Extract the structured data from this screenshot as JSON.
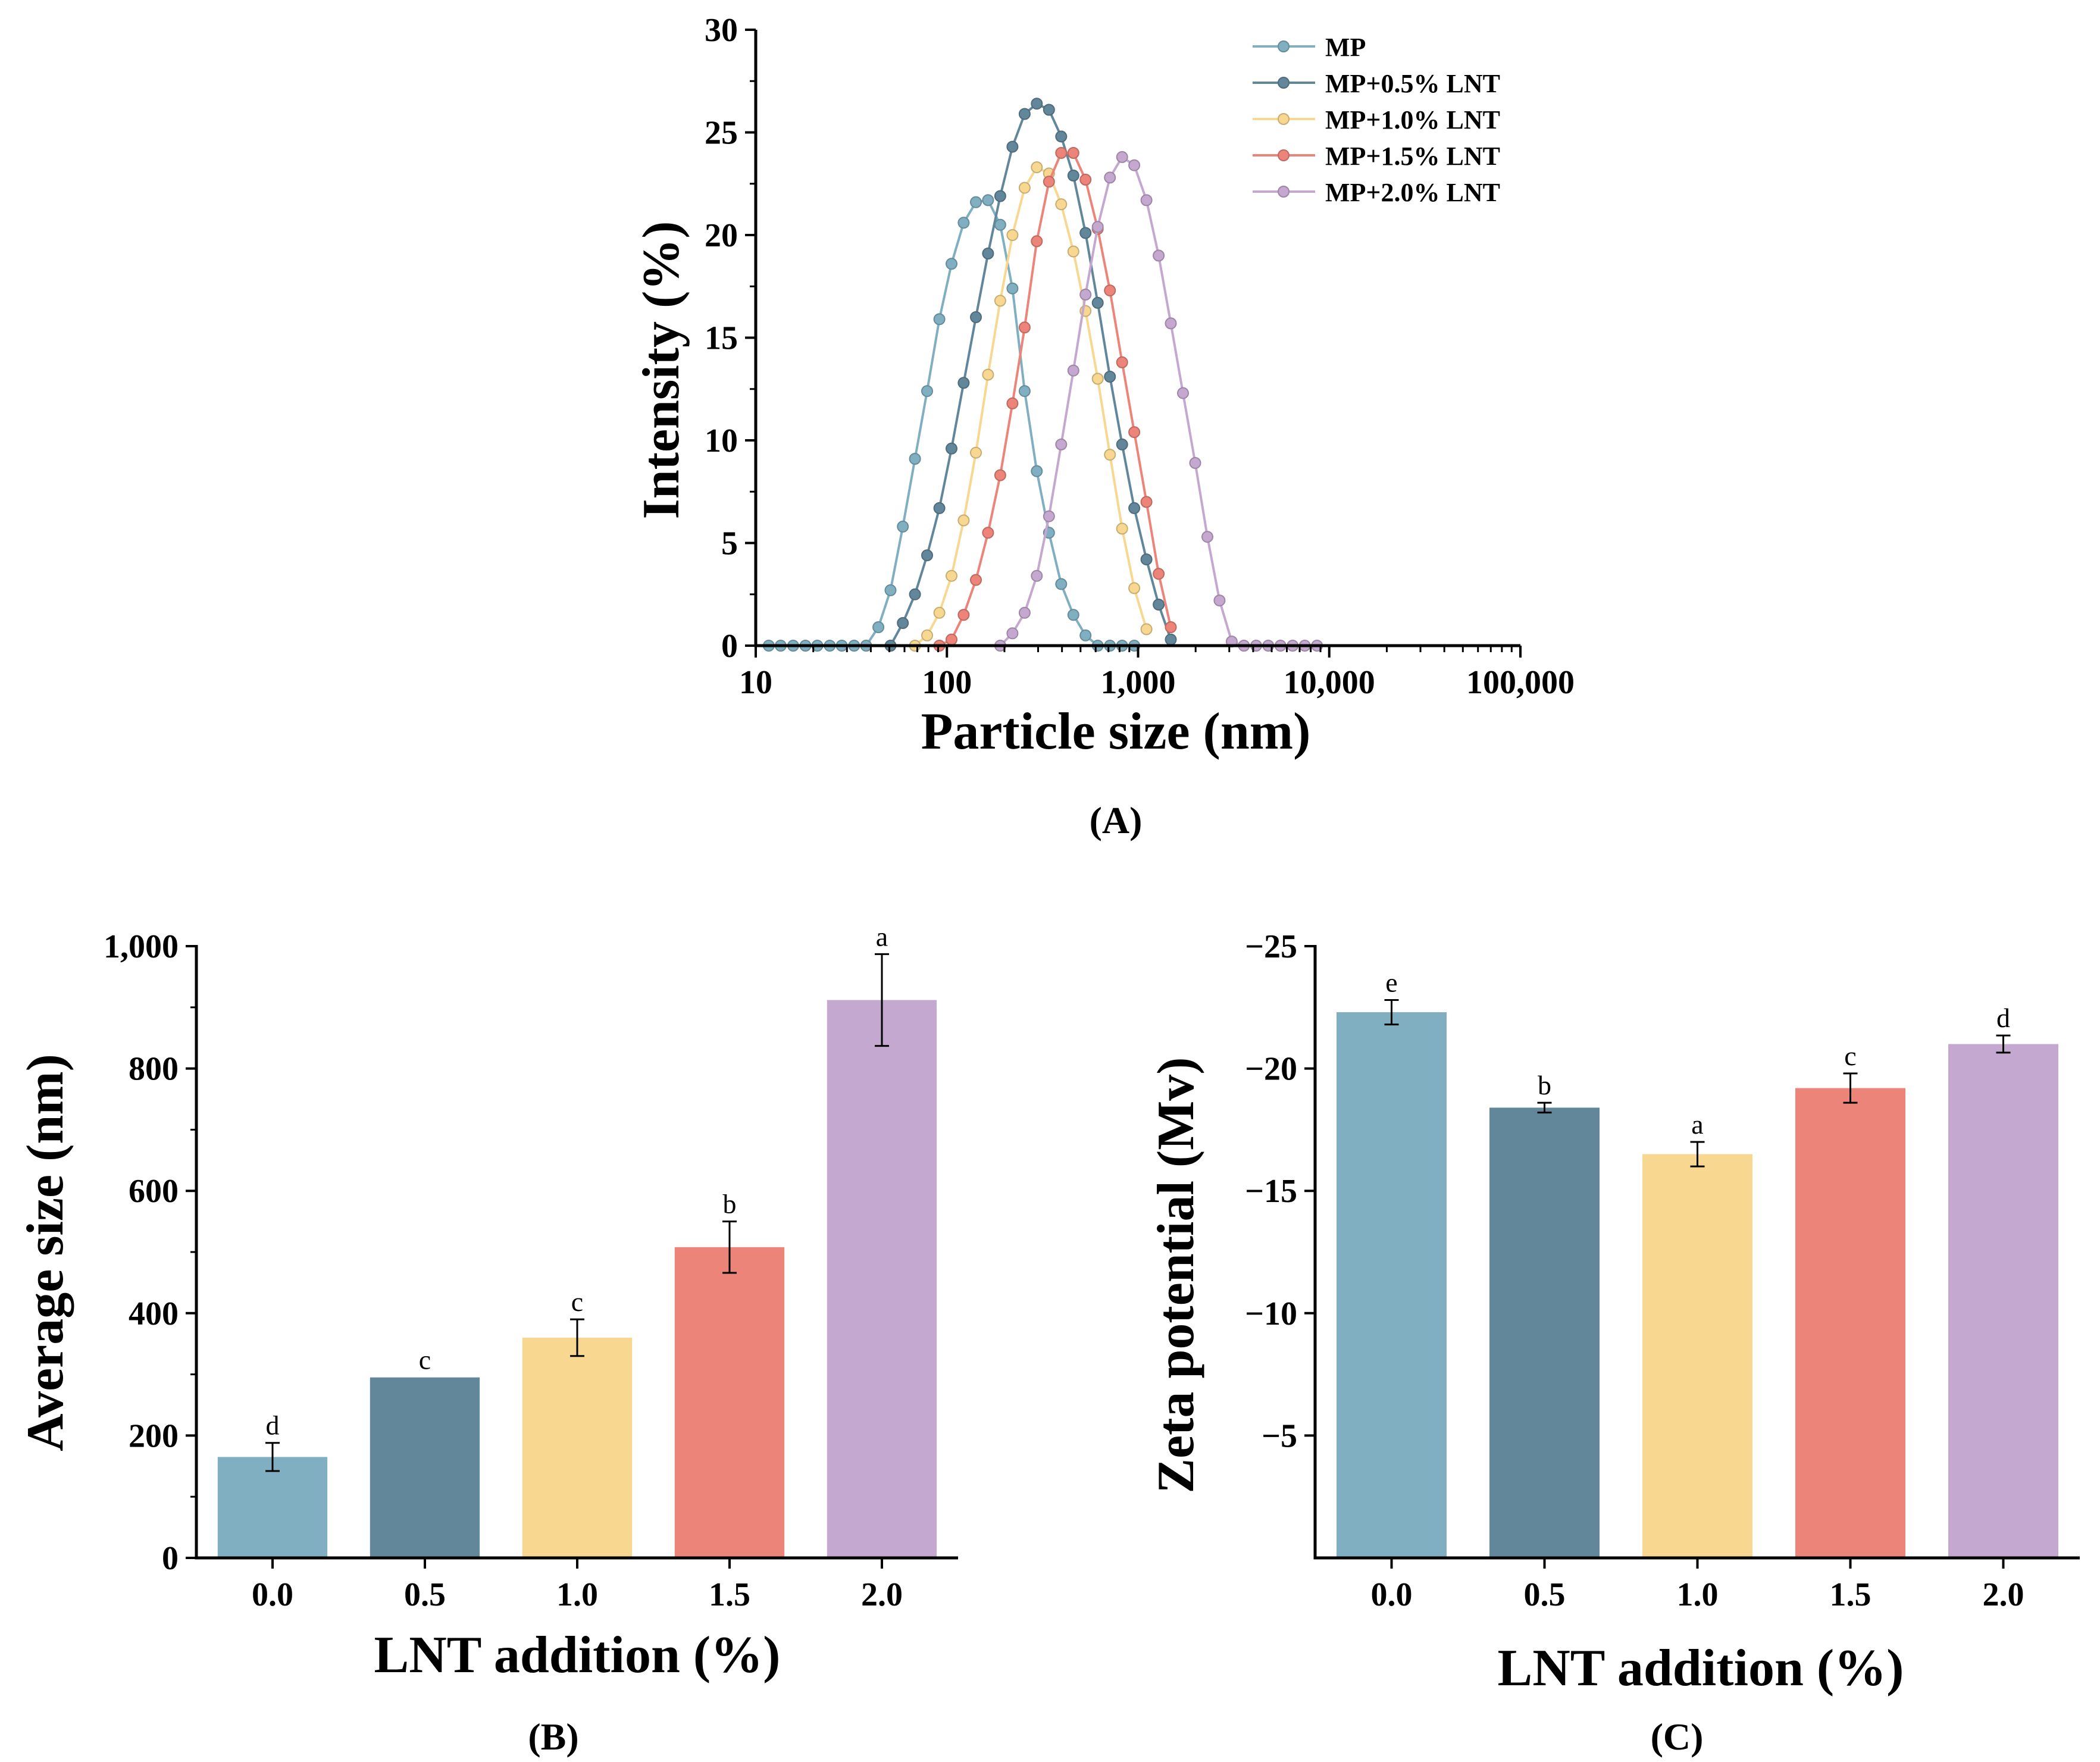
{
  "figure": {
    "panel_labels": [
      "(A)",
      "(B)",
      "(C)"
    ]
  },
  "chart_data": [
    {
      "panel": "(A)",
      "type": "line",
      "title": "",
      "xlabel": "Particle size (nm)",
      "ylabel": "Intensity (%)",
      "xscale": "log",
      "xlim": [
        10,
        100000
      ],
      "ylim": [
        0,
        30
      ],
      "xticks": [
        10,
        100,
        1000,
        10000,
        100000
      ],
      "xtick_labels": [
        "10",
        "100",
        "1,000",
        "10,000",
        "100,000"
      ],
      "yticks": [
        0,
        5,
        10,
        15,
        20,
        25,
        30
      ],
      "ytick_labels": [
        "0",
        "5",
        "10",
        "15",
        "20",
        "25",
        "30"
      ],
      "legend_position": "top-right",
      "series": [
        {
          "name": "MP",
          "color": "#7fafc0",
          "x": [
            11.7,
            13.5,
            15.7,
            18.2,
            21.0,
            24.4,
            28.2,
            32.7,
            37.8,
            43.8,
            50.7,
            58.8,
            68.1,
            78.8,
            91.3,
            105.7,
            122.4,
            141.8,
            164.2,
            190.1,
            220.2,
            255.0,
            295.3,
            342.0,
            396.1,
            458.7,
            531.2,
            615.1,
            712.4,
            825.0,
            955.4
          ],
          "y": [
            0,
            0,
            0,
            0,
            0,
            0,
            0,
            0,
            0,
            0.9,
            2.7,
            5.8,
            9.1,
            12.4,
            15.9,
            18.6,
            20.6,
            21.6,
            21.7,
            20.5,
            17.4,
            12.4,
            8.5,
            5.5,
            3.0,
            1.5,
            0.5,
            0,
            0,
            0,
            0
          ]
        },
        {
          "name": "MP+0.5% LNT",
          "color": "#62879a",
          "x": [
            50.7,
            58.8,
            68.1,
            78.8,
            91.3,
            105.7,
            122.4,
            141.8,
            164.2,
            190.1,
            220.2,
            255.0,
            295.3,
            342.0,
            396.1,
            458.7,
            531.2,
            615.1,
            712.4,
            825.0,
            955.4,
            1106.4,
            1281.3,
            1483.7
          ],
          "y": [
            0,
            1.1,
            2.5,
            4.4,
            6.7,
            9.6,
            12.8,
            16.0,
            19.1,
            21.9,
            24.3,
            25.9,
            26.4,
            26.1,
            24.8,
            22.9,
            20.1,
            16.7,
            13.1,
            9.8,
            6.7,
            4.2,
            2.0,
            0.3
          ]
        },
        {
          "name": "MP+1.0% LNT",
          "color": "#f8d890",
          "x": [
            68.1,
            78.8,
            91.3,
            105.7,
            122.4,
            141.8,
            164.2,
            190.1,
            220.2,
            255.0,
            295.3,
            342.0,
            396.1,
            458.7,
            531.2,
            615.1,
            712.4,
            825.0,
            955.4,
            1106.4
          ],
          "y": [
            0,
            0.5,
            1.6,
            3.4,
            6.1,
            9.4,
            13.2,
            16.8,
            20.0,
            22.3,
            23.3,
            23.0,
            21.5,
            19.2,
            16.3,
            13.0,
            9.3,
            5.7,
            2.8,
            0.8
          ]
        },
        {
          "name": "MP+1.5% LNT",
          "color": "#ec8479",
          "x": [
            91.3,
            105.7,
            122.4,
            141.8,
            164.2,
            190.1,
            220.2,
            255.0,
            295.3,
            342.0,
            396.1,
            458.7,
            531.2,
            615.1,
            712.4,
            825.0,
            955.4,
            1106.4,
            1281.3,
            1483.7
          ],
          "y": [
            0,
            0.3,
            1.5,
            3.2,
            5.5,
            8.3,
            11.8,
            15.5,
            19.7,
            22.6,
            24.0,
            24.0,
            22.7,
            20.3,
            17.3,
            13.8,
            10.4,
            7.0,
            3.5,
            0.9
          ]
        },
        {
          "name": "MP+2.0% LNT",
          "color": "#c5a8cf",
          "x": [
            190.1,
            220.2,
            255.0,
            295.3,
            342.0,
            396.1,
            458.7,
            531.2,
            615.1,
            712.4,
            825.0,
            955.4,
            1106.4,
            1281.3,
            1483.7,
            1718.1,
            1989.7,
            2304.3,
            2668.5,
            3090.3,
            3578.7,
            4144.3,
            4799.3,
            5557.8,
            6436.2,
            7453.4,
            8631.4
          ],
          "y": [
            0,
            0.6,
            1.6,
            3.4,
            6.3,
            9.8,
            13.4,
            17.1,
            20.4,
            22.8,
            23.8,
            23.4,
            21.7,
            19.0,
            15.7,
            12.3,
            8.9,
            5.3,
            2.2,
            0.2,
            0,
            0,
            0,
            0,
            0,
            0,
            0
          ]
        }
      ]
    },
    {
      "panel": "(B)",
      "type": "bar",
      "title": "",
      "xlabel": "LNT addition (%)",
      "ylabel": "Average size (nm)",
      "categories": [
        "0.0",
        "0.5",
        "1.0",
        "1.5",
        "2.0"
      ],
      "values": [
        165,
        295,
        360,
        508,
        912
      ],
      "errors": [
        23,
        0,
        30,
        42,
        75
      ],
      "significance": [
        "d",
        "c",
        "c",
        "b",
        "a"
      ],
      "colors": [
        "#7fafc0",
        "#62879a",
        "#f8d890",
        "#ec8479",
        "#c5a8cf"
      ],
      "ylim": [
        0,
        1000
      ],
      "yticks": [
        0,
        200,
        400,
        600,
        800,
        1000
      ],
      "ytick_labels": [
        "0",
        "200",
        "400",
        "600",
        "800",
        "1,000"
      ]
    },
    {
      "panel": "(C)",
      "type": "bar",
      "title": "",
      "xlabel": "LNT addition (%)",
      "ylabel": "Zeta potential (Mv)",
      "categories": [
        "0.0",
        "0.5",
        "1.0",
        "1.5",
        "2.0"
      ],
      "values": [
        -22.3,
        -18.4,
        -16.5,
        -19.2,
        -21.0
      ],
      "errors": [
        0.5,
        0.2,
        0.5,
        0.6,
        0.35
      ],
      "significance": [
        "e",
        "b",
        "a",
        "c",
        "d"
      ],
      "colors": [
        "#7fafc0",
        "#62879a",
        "#f8d890",
        "#ec8479",
        "#c5a8cf"
      ],
      "ylim": [
        0,
        -25
      ],
      "yticks": [
        -5,
        -10,
        -15,
        -20,
        -25
      ],
      "ytick_labels": [
        "−5",
        "−10",
        "−15",
        "−20",
        "−25"
      ]
    }
  ]
}
